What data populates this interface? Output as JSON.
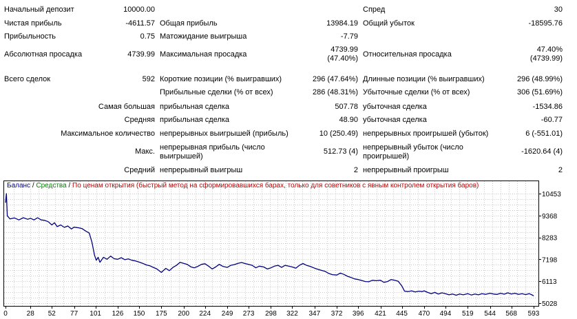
{
  "report": {
    "initial_deposit": {
      "label": "Начальный депозит",
      "value": "10000.00"
    },
    "spread": {
      "label": "Спред",
      "value": "30"
    },
    "net_profit": {
      "label": "Чистая прибыль",
      "value": "-4611.57"
    },
    "gross_profit": {
      "label": "Общая прибыль",
      "value": "13984.19"
    },
    "gross_loss": {
      "label": "Общий убыток",
      "value": "-18595.76"
    },
    "profit_factor": {
      "label": "Прибыльность",
      "value": "0.75"
    },
    "expected_payoff": {
      "label": "Матожидание выигрыша",
      "value": "-7.79"
    },
    "absolute_drawdown": {
      "label": "Абсолютная просадка",
      "value": "4739.99"
    },
    "maximal_drawdown": {
      "label": "Максимальная просадка",
      "value_line1": "4739.99",
      "value_line2": "(47.40%)"
    },
    "relative_drawdown": {
      "label": "Относительная просадка",
      "value_line1": "47.40%",
      "value_line2": "(4739.99)"
    },
    "total_trades": {
      "label": "Всего сделок",
      "value": "592"
    },
    "short_positions": {
      "label": "Короткие позиции (% выигравших)",
      "value": "296 (47.64%)"
    },
    "long_positions": {
      "label": "Длинные позиции (% выигравших)",
      "value": "296 (48.99%)"
    },
    "profit_trades": {
      "label": "Прибыльные сделки (% от всех)",
      "value": "286 (48.31%)"
    },
    "loss_trades": {
      "label": "Убыточные сделки (% от всех)",
      "value": "306 (51.69%)"
    },
    "largest": {
      "label": "Самая большая",
      "profit_label": "прибыльная сделка",
      "profit_value": "507.78",
      "loss_label": "убыточная сделка",
      "loss_value": "-1534.86"
    },
    "average": {
      "label": "Средняя",
      "profit_label": "прибыльная сделка",
      "profit_value": "48.90",
      "loss_label": "убыточная сделка",
      "loss_value": "-60.77"
    },
    "max_consecutive": {
      "label": "Максимальное количество",
      "wins_label": "непрерывных выигрышей (прибыль)",
      "wins_value": "10 (250.49)",
      "losses_label": "непрерывных проигрышей (убыток)",
      "losses_value": "6 (-551.01)"
    },
    "max_consecutive_amount": {
      "label": "Макс.",
      "profit_label": "непрерывная прибыль (число выигрышей)",
      "profit_value": "512.73 (4)",
      "loss_label": "непрерывный убыток (число проигрышей)",
      "loss_value": "-1620.64 (4)"
    },
    "average_consecutive": {
      "label": "Средний",
      "wins_label": "непрерывный выигрыш",
      "wins_value": "2",
      "losses_label": "непрерывный проигрыш",
      "losses_value": "2"
    }
  },
  "legend": {
    "balance": "Баланс",
    "sep1": " / ",
    "equity": "Средства",
    "sep2": " / ",
    "model": "По ценам открытия (быстрый метод на сформировавшихся барах, только для советников с явным контролем открытия баров)",
    "balance_color": "#000080",
    "equity_color": "#008000",
    "model_color": "#c00000"
  },
  "chart_data": {
    "type": "line",
    "x_ticks": [
      0,
      28,
      52,
      77,
      101,
      126,
      150,
      175,
      200,
      224,
      249,
      273,
      298,
      322,
      347,
      372,
      396,
      421,
      445,
      470,
      494,
      519,
      544,
      568,
      593
    ],
    "y_ticks": [
      10453,
      9368,
      8283,
      7198,
      6113,
      5028
    ],
    "xlim": [
      0,
      593
    ],
    "ylim": [
      5028,
      10453
    ],
    "grid": true,
    "series": [
      {
        "color": "#000080",
        "points": [
          [
            0,
            10000
          ],
          [
            1,
            10453
          ],
          [
            2,
            9350
          ],
          [
            5,
            9200
          ],
          [
            10,
            9250
          ],
          [
            15,
            9150
          ],
          [
            20,
            9260
          ],
          [
            25,
            9180
          ],
          [
            28,
            9230
          ],
          [
            32,
            9150
          ],
          [
            36,
            9260
          ],
          [
            40,
            9150
          ],
          [
            44,
            9130
          ],
          [
            48,
            9060
          ],
          [
            52,
            8900
          ],
          [
            55,
            9010
          ],
          [
            58,
            8820
          ],
          [
            62,
            8900
          ],
          [
            66,
            8780
          ],
          [
            70,
            8850
          ],
          [
            74,
            8700
          ],
          [
            77,
            8790
          ],
          [
            82,
            8760
          ],
          [
            86,
            8720
          ],
          [
            90,
            8600
          ],
          [
            94,
            8500
          ],
          [
            97,
            8050
          ],
          [
            100,
            7400
          ],
          [
            102,
            7150
          ],
          [
            104,
            7300
          ],
          [
            106,
            7050
          ],
          [
            110,
            7300
          ],
          [
            114,
            7200
          ],
          [
            118,
            7360
          ],
          [
            122,
            7230
          ],
          [
            126,
            7200
          ],
          [
            130,
            7280
          ],
          [
            134,
            7180
          ],
          [
            138,
            7220
          ],
          [
            142,
            7150
          ],
          [
            146,
            7120
          ],
          [
            150,
            7060
          ],
          [
            154,
            7000
          ],
          [
            158,
            6920
          ],
          [
            162,
            6880
          ],
          [
            166,
            6800
          ],
          [
            170,
            6720
          ],
          [
            175,
            6550
          ],
          [
            180,
            6750
          ],
          [
            184,
            6640
          ],
          [
            188,
            6800
          ],
          [
            192,
            6900
          ],
          [
            196,
            7050
          ],
          [
            200,
            7000
          ],
          [
            204,
            6950
          ],
          [
            208,
            6830
          ],
          [
            212,
            6780
          ],
          [
            216,
            6850
          ],
          [
            220,
            6950
          ],
          [
            224,
            6980
          ],
          [
            228,
            6860
          ],
          [
            232,
            6720
          ],
          [
            236,
            6820
          ],
          [
            240,
            6950
          ],
          [
            244,
            6850
          ],
          [
            249,
            6800
          ],
          [
            253,
            6900
          ],
          [
            257,
            6940
          ],
          [
            261,
            7000
          ],
          [
            265,
            7040
          ],
          [
            269,
            6990
          ],
          [
            273,
            6950
          ],
          [
            277,
            6900
          ],
          [
            281,
            6780
          ],
          [
            285,
            6860
          ],
          [
            290,
            6820
          ],
          [
            294,
            6720
          ],
          [
            298,
            6780
          ],
          [
            302,
            6860
          ],
          [
            306,
            6900
          ],
          [
            310,
            6800
          ],
          [
            314,
            6900
          ],
          [
            318,
            6860
          ],
          [
            322,
            6820
          ],
          [
            326,
            6760
          ],
          [
            330,
            6900
          ],
          [
            334,
            6990
          ],
          [
            338,
            6900
          ],
          [
            342,
            6850
          ],
          [
            347,
            6760
          ],
          [
            351,
            6700
          ],
          [
            355,
            6650
          ],
          [
            359,
            6600
          ],
          [
            363,
            6500
          ],
          [
            367,
            6440
          ],
          [
            372,
            6420
          ],
          [
            376,
            6520
          ],
          [
            380,
            6450
          ],
          [
            384,
            6360
          ],
          [
            388,
            6300
          ],
          [
            392,
            6230
          ],
          [
            396,
            6200
          ],
          [
            400,
            6150
          ],
          [
            404,
            6100
          ],
          [
            408,
            6090
          ],
          [
            412,
            6160
          ],
          [
            416,
            6140
          ],
          [
            421,
            6160
          ],
          [
            425,
            6060
          ],
          [
            429,
            6100
          ],
          [
            433,
            6200
          ],
          [
            437,
            6160
          ],
          [
            441,
            6110
          ],
          [
            445,
            5880
          ],
          [
            448,
            5620
          ],
          [
            452,
            5600
          ],
          [
            456,
            5640
          ],
          [
            460,
            5580
          ],
          [
            464,
            5620
          ],
          [
            468,
            5600
          ],
          [
            470,
            5640
          ],
          [
            474,
            5560
          ],
          [
            478,
            5500
          ],
          [
            482,
            5560
          ],
          [
            486,
            5480
          ],
          [
            490,
            5540
          ],
          [
            494,
            5500
          ],
          [
            498,
            5440
          ],
          [
            502,
            5480
          ],
          [
            506,
            5420
          ],
          [
            510,
            5480
          ],
          [
            514,
            5440
          ],
          [
            519,
            5500
          ],
          [
            523,
            5430
          ],
          [
            527,
            5480
          ],
          [
            531,
            5440
          ],
          [
            535,
            5500
          ],
          [
            539,
            5460
          ],
          [
            544,
            5520
          ],
          [
            548,
            5480
          ],
          [
            552,
            5460
          ],
          [
            556,
            5520
          ],
          [
            560,
            5470
          ],
          [
            564,
            5540
          ],
          [
            568,
            5480
          ],
          [
            572,
            5520
          ],
          [
            576,
            5460
          ],
          [
            580,
            5500
          ],
          [
            584,
            5450
          ],
          [
            588,
            5500
          ],
          [
            592,
            5420
          ],
          [
            593,
            5380
          ]
        ]
      }
    ]
  }
}
